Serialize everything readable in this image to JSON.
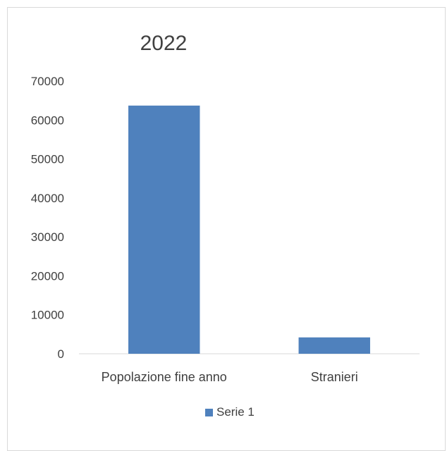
{
  "chart_data": {
    "type": "bar",
    "title": "2022",
    "categories": [
      "Popolazione fine anno",
      "Stranieri"
    ],
    "series": [
      {
        "name": "Serie 1",
        "values": [
          63700,
          4200
        ],
        "color": "#4f81bd"
      }
    ],
    "ylim": [
      0,
      70000
    ],
    "yticks": [
      "0",
      "10000",
      "20000",
      "30000",
      "40000",
      "50000",
      "60000",
      "70000"
    ],
    "grid": false,
    "legend_position": "bottom"
  }
}
